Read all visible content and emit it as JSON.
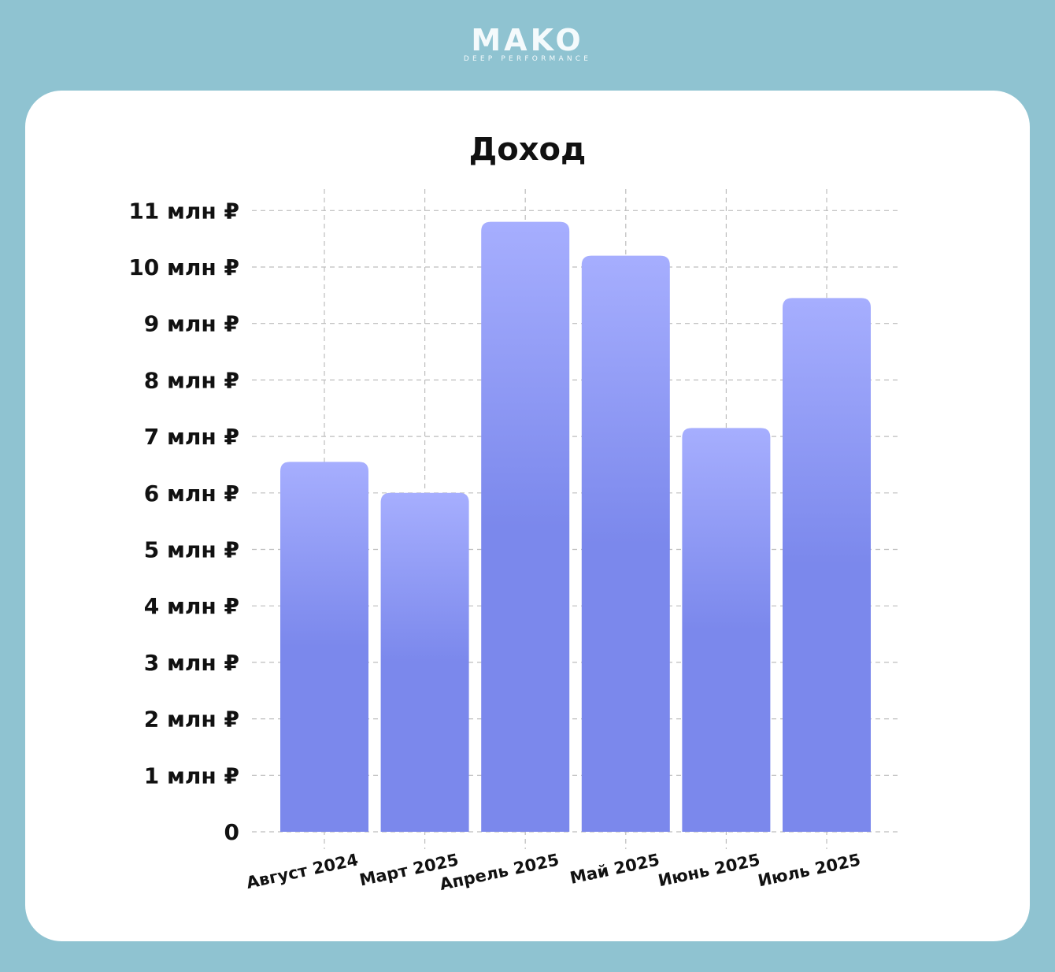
{
  "brand": {
    "name": "MAKO",
    "tagline": "DEEP PERFORMANCE"
  },
  "chart_data": {
    "type": "bar",
    "title": "Доход",
    "xlabel": "",
    "ylabel": "",
    "categories": [
      "Август 2024",
      "Март 2025",
      "Апрель 2025",
      "Май 2025",
      "Июнь 2025",
      "Июль 2025"
    ],
    "values": [
      6.55,
      6.0,
      10.8,
      10.2,
      7.15,
      9.45
    ],
    "ylim": [
      0,
      11
    ],
    "yticks": [
      0,
      1,
      2,
      3,
      4,
      5,
      6,
      7,
      8,
      9,
      10,
      11
    ],
    "ytick_labels": [
      "0",
      "1 млн ₽",
      "2 млн ₽",
      "3 млн ₽",
      "4 млн ₽",
      "5 млн ₽",
      "6 млн ₽",
      "7 млн ₽",
      "8 млн ₽",
      "9 млн ₽",
      "10 млн ₽",
      "11 млн ₽"
    ],
    "grid": true,
    "colors": {
      "bar_top": "#a6aefe",
      "bar_bottom": "#7b88ec",
      "grid": "#bdbdbd"
    }
  }
}
